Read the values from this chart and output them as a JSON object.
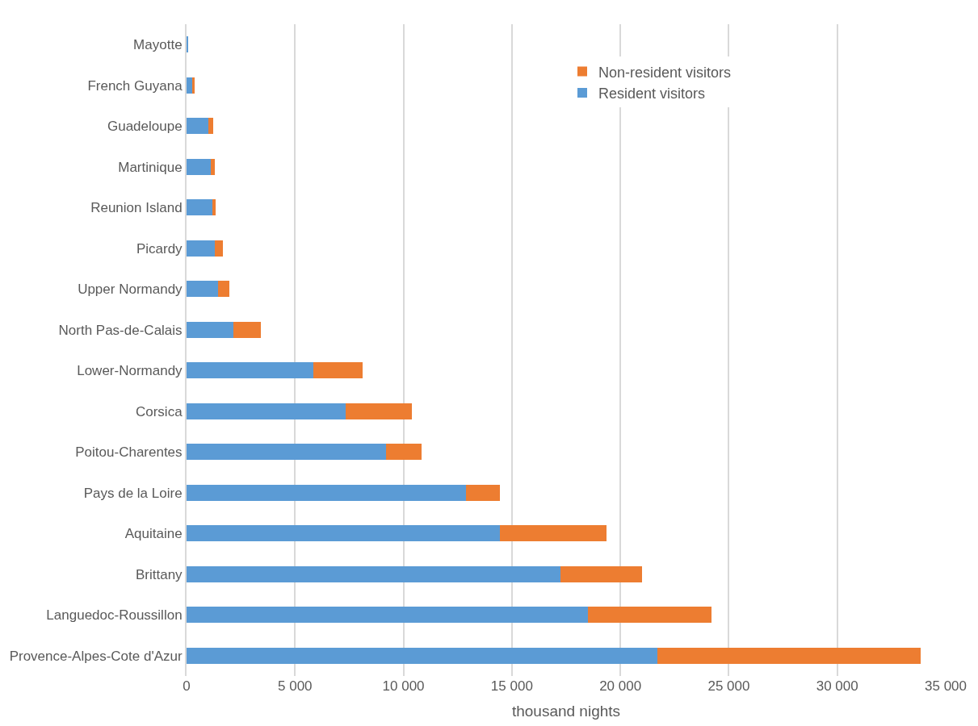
{
  "chart_data": {
    "type": "bar",
    "orientation": "horizontal",
    "stacked": true,
    "xlabel": "thousand nights",
    "categories": [
      "Mayotte",
      "French Guyana",
      "Guadeloupe",
      "Martinique",
      "Reunion Island",
      "Picardy",
      "Upper Normandy",
      "North Pas-de-Calais",
      "Lower-Normandy",
      "Corsica",
      "Poitou-Charentes",
      "Pays de la Loire",
      "Aquitaine",
      "Brittany",
      "Languedoc-Roussillon",
      "Provence-Alpes-Cote d'Azur"
    ],
    "series": [
      {
        "name": "Resident visitors",
        "color": "#5b9bd5",
        "values": [
          60,
          270,
          1010,
          1110,
          1180,
          1300,
          1470,
          2160,
          5840,
          7340,
          9210,
          12900,
          14440,
          17250,
          18500,
          21720
        ]
      },
      {
        "name": "Non-resident visitors",
        "color": "#ed7d31",
        "values": [
          0,
          90,
          200,
          190,
          150,
          390,
          520,
          1250,
          2290,
          3040,
          1630,
          1550,
          4940,
          3760,
          5700,
          12110
        ]
      }
    ],
    "xlim": [
      0,
      35000
    ],
    "xticks": [
      0,
      {
        "value": 5000,
        "label": "5 000"
      },
      {
        "value": 10000,
        "label": "10 000"
      },
      {
        "value": 15000,
        "label": "15 000"
      },
      {
        "value": 20000,
        "label": "20 000"
      },
      {
        "value": 25000,
        "label": "25 000"
      },
      {
        "value": 30000,
        "label": "30 000"
      },
      {
        "value": 35000,
        "label": "35 000"
      }
    ],
    "grid": "x",
    "legend": "top right"
  }
}
